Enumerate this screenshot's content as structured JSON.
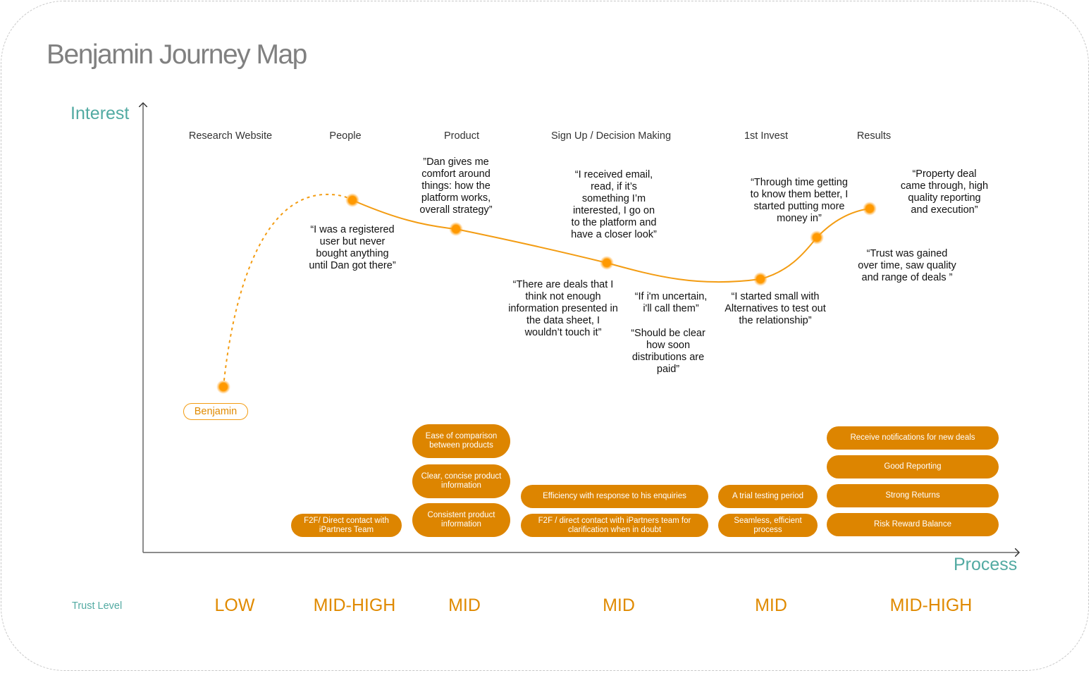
{
  "title": "Benjamin Journey Map",
  "axes": {
    "y_label": "Interest",
    "x_label": "Process"
  },
  "persona": "Benjamin",
  "stages": [
    "Research Website",
    "People",
    "Product",
    "Sign Up / Decision Making",
    "1st Invest",
    "Results"
  ],
  "quotes": [
    "“I was a registered\nuser but never\nbought anything\nuntil Dan got there”",
    "”Dan gives me\ncomfort around\nthings: how the\nplatform works,\noverall strategy”",
    "“I received email,\nread, if it’s\nsomething I’m\ninterested, I go on\nto the platform and\nhave a closer look”",
    "“There are deals that I\nthink not enough\ninformation presented in\nthe data sheet, I\nwouldn’t touch it”",
    "“If i'm uncertain,\ni'll call them”",
    "“Should be clear\nhow soon\ndistributions are\npaid”",
    "“Through time getting\nto know them better, I\nstarted putting more\nmoney in”",
    "“I started small with\nAlternatives to test out\nthe relationship”",
    "“Property deal\ncame through, high\nquality reporting\nand execution”",
    "“Trust was gained\nover time, saw quality\nand range of deals ”"
  ],
  "needs": {
    "people": [
      "F2F/ Direct contact with\niPartners Team"
    ],
    "product": [
      "Ease of comparison\nbetween products",
      "Clear, concise product\ninformation",
      "Consistent product\ninformation"
    ],
    "signup": [
      "Efficiency with response to his enquiries",
      "F2F / direct contact with iPartners team for\nclarification when in doubt"
    ],
    "invest": [
      "A trial testing period",
      "Seamless, efficient\nprocess"
    ],
    "results": [
      "Receive notifications for new deals",
      "Good Reporting",
      "Strong Returns",
      "Risk Reward Balance"
    ]
  },
  "trust": {
    "label": "Trust Level",
    "levels": [
      "LOW",
      "MID-HIGH",
      "MID",
      "MID",
      "MID",
      "MID-HIGH"
    ]
  },
  "colors": {
    "accent": "#f39c12",
    "pill": "#dd8500",
    "teal": "#52aaa2",
    "title": "#808080"
  }
}
